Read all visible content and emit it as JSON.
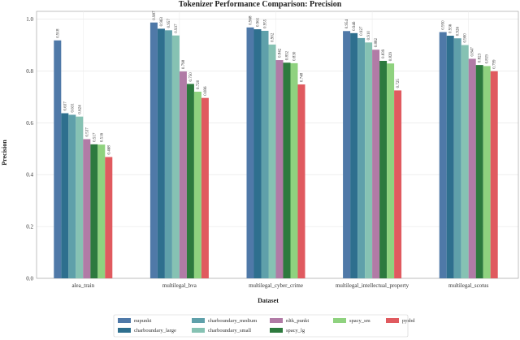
{
  "chart_data": {
    "type": "bar",
    "title": "Tokenizer Performance Comparison: Precision",
    "xlabel": "Dataset",
    "ylabel": "Precision",
    "ylim": [
      0.0,
      1.03
    ],
    "yticks": [
      "0.0",
      "0.2",
      "0.4",
      "0.6",
      "0.8",
      "1.0"
    ],
    "grid": true,
    "legend_position": "bottom",
    "categories": [
      "alea_train",
      "multilegal_bva",
      "multilegal_cyber_crime",
      "multilegal_intellectual_property",
      "multilegal_scotus"
    ],
    "series": [
      {
        "name": "nupunkt",
        "color": "#4f79a8",
        "values": [
          0.918,
          0.987,
          0.968,
          0.954,
          0.95
        ],
        "labels": [
          "0.918",
          "0.987",
          "0.968",
          "0.954",
          "0.950"
        ]
      },
      {
        "name": "charboundary_large",
        "color": "#2e6f8e",
        "values": [
          0.637,
          0.963,
          0.961,
          0.946,
          0.936
        ],
        "labels": [
          "0.637",
          "0.963",
          "0.961",
          "0.946",
          "0.936"
        ]
      },
      {
        "name": "charboundary_medium",
        "color": "#5fa0aa",
        "values": [
          0.631,
          0.957,
          0.955,
          0.927,
          0.926
        ],
        "labels": [
          "0.631",
          "0.957",
          "0.955",
          "0.927",
          "0.926"
        ]
      },
      {
        "name": "charboundary_small",
        "color": "#86c2b3",
        "values": [
          0.624,
          0.937,
          0.902,
          0.91,
          0.9
        ],
        "labels": [
          "0.624",
          "0.937",
          "0.902",
          "0.910",
          "0.900"
        ]
      },
      {
        "name": "nltk_punkt",
        "color": "#b17ba6",
        "values": [
          0.537,
          0.798,
          0.842,
          0.882,
          0.847
        ],
        "labels": [
          "0.537",
          "0.798",
          "0.842",
          "0.882",
          "0.847"
        ]
      },
      {
        "name": "spacy_lg",
        "color": "#2d7a3e",
        "values": [
          0.517,
          0.75,
          0.832,
          0.839,
          0.823
        ],
        "labels": [
          "0.517",
          "0.750",
          "0.832",
          "0.839",
          "0.823"
        ]
      },
      {
        "name": "spacy_sm",
        "color": "#8fd27f",
        "values": [
          0.516,
          0.72,
          0.83,
          0.829,
          0.819
        ],
        "labels": [
          "0.516",
          "0.720",
          "0.830",
          "0.829",
          "0.819"
        ]
      },
      {
        "name": "pysbd",
        "color": "#e05a5f",
        "values": [
          0.468,
          0.696,
          0.748,
          0.725,
          0.799
        ],
        "labels": [
          "0.468",
          "0.696",
          "0.748",
          "0.725",
          "0.799"
        ]
      }
    ],
    "legend_order": [
      "nupunkt",
      "charboundary_medium",
      "nltk_punkt",
      "spacy_sm",
      "pysbd",
      "charboundary_large",
      "charboundary_small",
      "spacy_lg"
    ]
  }
}
